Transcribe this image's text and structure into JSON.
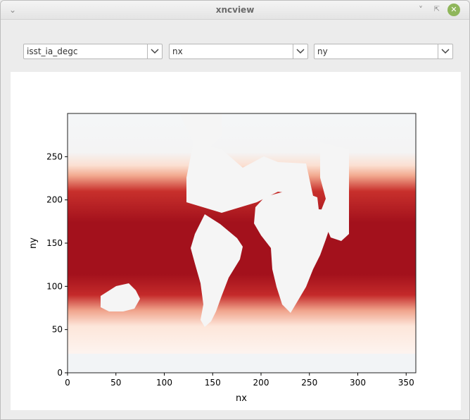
{
  "window": {
    "title": "xncview"
  },
  "controls": {
    "variable": "isst_ia_degc",
    "x_dim": "nx",
    "y_dim": "ny"
  },
  "chart_data": {
    "type": "heatmap",
    "xlabel": "nx",
    "ylabel": "ny",
    "xlim": [
      0,
      360
    ],
    "ylim": [
      0,
      300
    ],
    "xticks": [
      "0",
      "50",
      "100",
      "150",
      "200",
      "250",
      "300",
      "350"
    ],
    "yticks": [
      "0",
      "50",
      "100",
      "150",
      "200",
      "250"
    ],
    "colormap": "Reds",
    "land_color": "#f5f5f5",
    "colors": {
      "warm": "#a3111c",
      "mid": "#e05b45",
      "cool": "#fbe3d6"
    }
  }
}
